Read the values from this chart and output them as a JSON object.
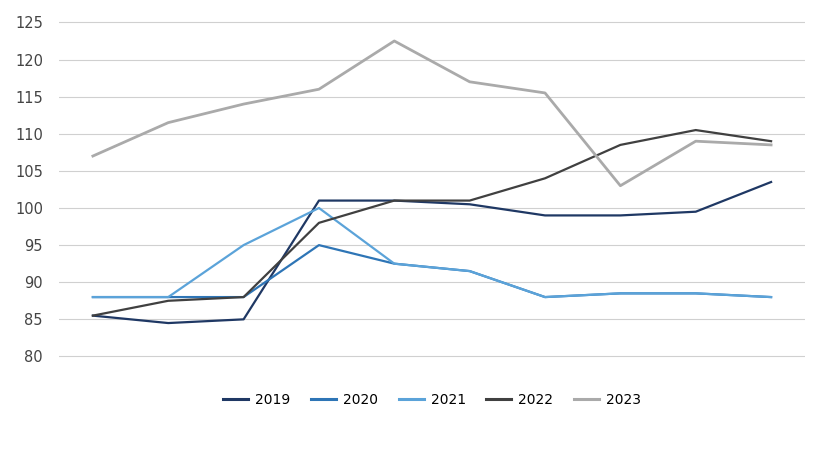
{
  "x_points": [
    1,
    2,
    3,
    4,
    5,
    6,
    7,
    8,
    9,
    10
  ],
  "series": {
    "2019": {
      "values": [
        85.5,
        84.5,
        85.0,
        101.0,
        101.0,
        100.5,
        99.0,
        99.0,
        99.5,
        103.5
      ],
      "color": "#1f3864",
      "linewidth": 1.6
    },
    "2020": {
      "values": [
        88.0,
        88.0,
        88.0,
        95.0,
        92.5,
        91.5,
        88.0,
        88.5,
        88.5,
        88.0
      ],
      "color": "#2e75b6",
      "linewidth": 1.6
    },
    "2021": {
      "values": [
        88.0,
        88.0,
        95.0,
        100.0,
        92.5,
        91.5,
        88.0,
        88.5,
        88.5,
        88.0
      ],
      "color": "#5ba3d9",
      "linewidth": 1.6
    },
    "2022": {
      "values": [
        85.5,
        87.5,
        88.0,
        98.0,
        101.0,
        101.0,
        104.0,
        108.5,
        110.5,
        109.0
      ],
      "color": "#404040",
      "linewidth": 1.6
    },
    "2023": {
      "values": [
        107.0,
        111.5,
        114.0,
        116.0,
        122.5,
        117.0,
        115.5,
        103.0,
        109.0,
        108.5
      ],
      "color": "#aaaaaa",
      "linewidth": 2.0
    }
  },
  "ylim": [
    79,
    126
  ],
  "yticks": [
    80,
    85,
    90,
    95,
    100,
    105,
    110,
    115,
    120,
    125
  ],
  "background_color": "#ffffff",
  "grid_color": "#d0d0d0",
  "legend_order": [
    "2019",
    "2020",
    "2021",
    "2022",
    "2023"
  ]
}
